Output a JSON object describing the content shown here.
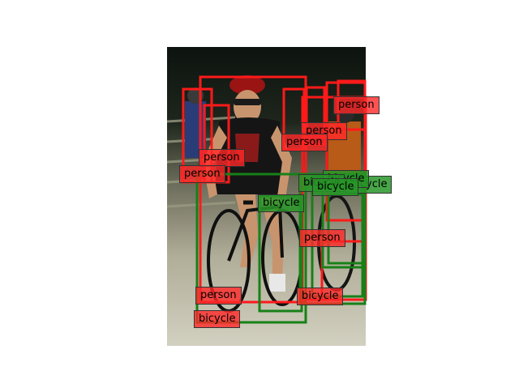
{
  "colors": {
    "person": "#ff1a1a",
    "bicycle": "#188018"
  },
  "labels": [
    {
      "text": "person",
      "class": "person"
    },
    {
      "text": "person",
      "class": "person"
    },
    {
      "text": "person",
      "class": "person"
    },
    {
      "text": "person",
      "class": "person"
    },
    {
      "text": "bicycle",
      "class": "bicycle"
    },
    {
      "text": "person",
      "class": "person"
    },
    {
      "text": "bicycle",
      "class": "bicycle"
    },
    {
      "text": "bicycle",
      "class": "bicycle"
    },
    {
      "text": "bicycle",
      "class": "bicycle"
    },
    {
      "text": "bicycle",
      "class": "bicycle"
    },
    {
      "text": "person",
      "class": "person"
    },
    {
      "text": "person",
      "class": "person"
    },
    {
      "text": "bicycle",
      "class": "bicycle"
    },
    {
      "text": "bicycle",
      "class": "bicycle"
    },
    {
      "text": "person",
      "class": "person"
    }
  ]
}
